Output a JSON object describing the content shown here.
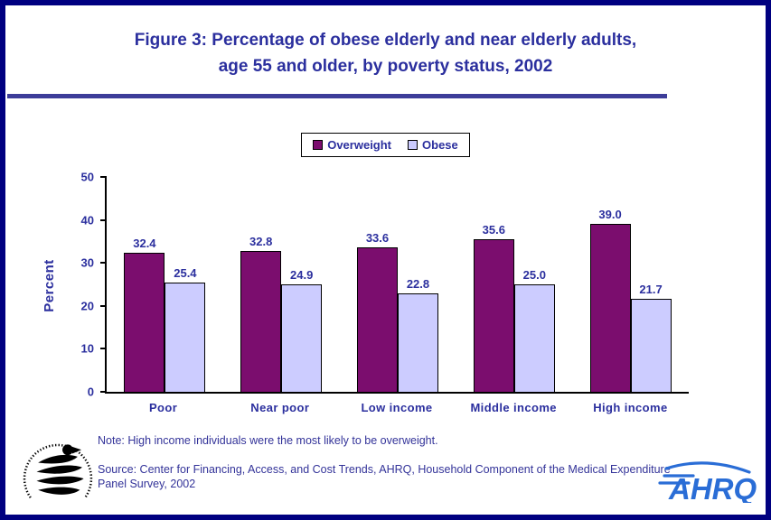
{
  "colors": {
    "border": "#000080",
    "title_text": "#2B2F9E",
    "divider": "#3D3D99",
    "axis_text": "#2B2F9E",
    "note_text": "#333399",
    "ahrq_blue": "#2A6DD6"
  },
  "title": {
    "line1": "Figure 3: Percentage of obese elderly and near elderly adults,",
    "line2": "age 55 and older, by poverty status, 2002"
  },
  "chart_data": {
    "type": "bar",
    "title": "Figure 3: Percentage of obese elderly and near elderly adults, age 55 and older, by poverty status, 2002",
    "categories": [
      "Poor",
      "Near poor",
      "Low income",
      "Middle income",
      "High income"
    ],
    "series": [
      {
        "name": "Overweight",
        "color": "#7B0D6E",
        "values": [
          32.4,
          32.8,
          33.6,
          35.6,
          39.0
        ]
      },
      {
        "name": "Obese",
        "color": "#CCCCFF",
        "values": [
          25.4,
          24.9,
          22.8,
          25.0,
          21.7
        ]
      }
    ],
    "xlabel": "",
    "ylabel": "Percent",
    "ylim": [
      0,
      50
    ],
    "yticks": [
      0,
      10,
      20,
      30,
      40,
      50
    ],
    "grid": false,
    "legend_position": "top-center",
    "value_labels": true,
    "value_label_format": "0.0"
  },
  "notes": {
    "note": "Note: High income individuals were the most likely to be overweight.",
    "source": "Source: Center for Financing, Access, and Cost Trends, AHRQ, Household Component of the Medical Expenditure Panel Survey, 2002"
  },
  "logos": {
    "hhs_icon": "hhs-eagle-seal",
    "ahrq_text": "AHRQ"
  }
}
